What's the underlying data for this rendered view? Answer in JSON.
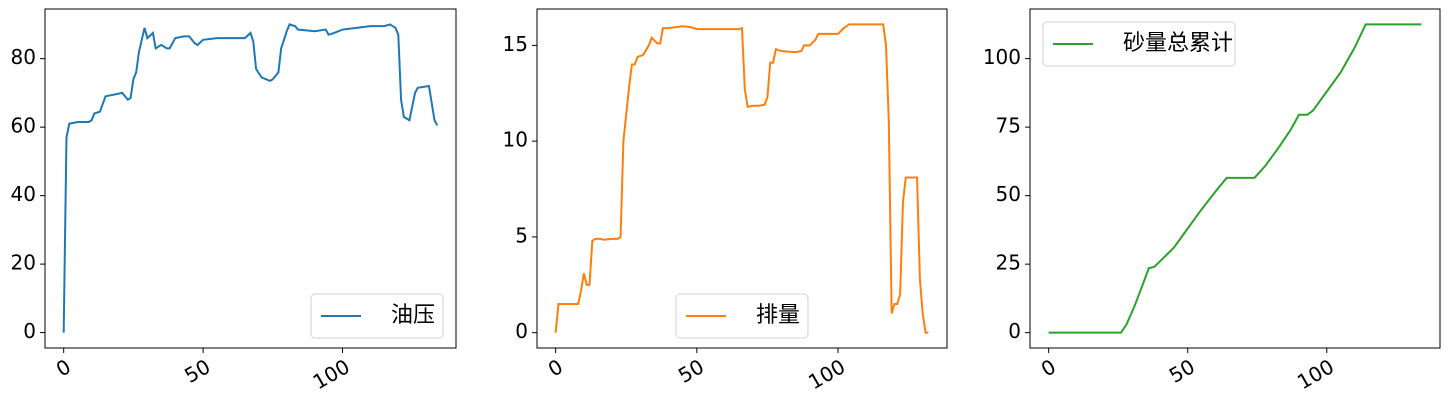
{
  "chart_data": [
    {
      "type": "line",
      "legend": "lower right",
      "x": [
        0,
        1,
        2,
        5,
        9,
        10,
        11,
        13,
        15,
        18,
        21,
        23,
        24,
        25,
        26,
        27,
        29,
        30,
        32,
        33,
        35,
        37,
        38,
        40,
        43,
        45,
        47,
        48,
        50,
        55,
        60,
        65,
        67,
        68,
        69,
        71,
        74,
        75,
        77,
        78,
        80,
        81,
        83,
        84,
        90,
        94,
        95,
        97,
        100,
        105,
        110,
        115,
        117,
        119,
        120,
        121,
        122,
        124,
        126,
        127,
        131,
        133,
        134
      ],
      "series": [
        {
          "name": "油压",
          "color": "#1f77b4",
          "values": [
            0,
            57,
            61,
            61.5,
            61.5,
            62,
            64,
            64.5,
            69,
            69.5,
            70,
            68,
            68.5,
            74,
            76,
            82,
            89,
            86,
            87.5,
            83,
            84,
            83,
            83,
            86,
            86.5,
            86.5,
            84.5,
            84,
            85.5,
            86,
            86,
            86,
            87.5,
            85,
            77,
            74.5,
            73.5,
            74,
            76,
            83,
            88,
            90,
            89.5,
            88.5,
            88,
            88.5,
            87,
            87.5,
            88.5,
            89,
            89.5,
            89.5,
            90,
            89,
            87,
            68,
            63,
            62,
            70,
            71.5,
            72,
            62,
            60.5
          ]
        }
      ],
      "xlim": [
        -6.7,
        140.7
      ],
      "ylim": [
        -4.5,
        94.5
      ],
      "xticks": [
        0,
        50,
        100
      ],
      "yticks": [
        0,
        20,
        40,
        60,
        80
      ]
    },
    {
      "type": "line",
      "legend": "lower center",
      "x": [
        0,
        1,
        7,
        8,
        9,
        10,
        11,
        12,
        13,
        14,
        16,
        17,
        20,
        22,
        23,
        24,
        26,
        27,
        28,
        29,
        31,
        33,
        34,
        36,
        37,
        38,
        40,
        45,
        48,
        50,
        55,
        60,
        65,
        66,
        67,
        68,
        70,
        72,
        74,
        75,
        76,
        77,
        78,
        80,
        85,
        87,
        88,
        90,
        92,
        93,
        95,
        100,
        102,
        104,
        110,
        116,
        117,
        118,
        119,
        120,
        121,
        122,
        123,
        124,
        127,
        128,
        129,
        130,
        131,
        132
      ],
      "series": [
        {
          "name": "排量",
          "color": "#ff7f0e",
          "values": [
            0,
            1.5,
            1.5,
            1.5,
            2.2,
            3.1,
            2.5,
            2.5,
            4.8,
            4.9,
            4.9,
            4.85,
            4.9,
            4.9,
            5,
            10,
            12.8,
            14,
            14,
            14.4,
            14.5,
            15,
            15.4,
            15.1,
            15.1,
            15.9,
            15.9,
            16,
            15.95,
            15.85,
            15.85,
            15.85,
            15.85,
            15.9,
            12.7,
            11.8,
            11.85,
            11.85,
            11.9,
            12.3,
            14.1,
            14.1,
            14.8,
            14.7,
            14.65,
            14.7,
            15,
            15,
            15.3,
            15.6,
            15.6,
            15.6,
            15.9,
            16.1,
            16.1,
            16.1,
            15,
            11,
            1,
            1.5,
            1.5,
            2,
            6.8,
            8.1,
            8.1,
            8.1,
            2.8,
            1,
            0,
            0
          ]
        }
      ],
      "xlim": [
        -6.6,
        138.6
      ],
      "ylim": [
        -0.8,
        16.9
      ],
      "xticks": [
        0,
        50,
        100
      ],
      "yticks": [
        0,
        5,
        10,
        15
      ]
    },
    {
      "type": "line",
      "legend": "upper left",
      "x": [
        0,
        26,
        28,
        31,
        34,
        36,
        38,
        40,
        45,
        50,
        55,
        60,
        64,
        74,
        78,
        83,
        87,
        90,
        93,
        95,
        100,
        105,
        110,
        114,
        134
      ],
      "series": [
        {
          "name": "砂量总累计",
          "color": "#2ca02c",
          "values": [
            0,
            0,
            3,
            10,
            18,
            23.5,
            24,
            26,
            31,
            38,
            45,
            51.5,
            56.5,
            56.5,
            61,
            68,
            74,
            79.5,
            79.5,
            81,
            88,
            95,
            104,
            112.5,
            112.5
          ]
        }
      ],
      "xlim": [
        -6.7,
        140.7
      ],
      "ylim": [
        -5.6,
        118.1
      ],
      "xticks": [
        0,
        50,
        100
      ],
      "yticks": [
        0,
        25,
        50,
        75,
        100
      ]
    }
  ]
}
